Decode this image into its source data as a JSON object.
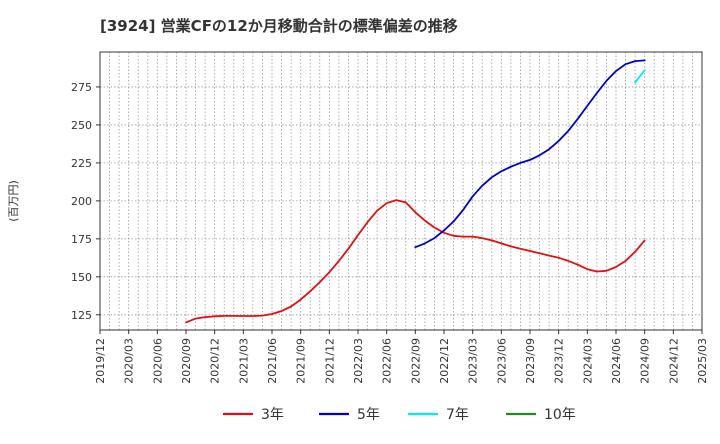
{
  "chart_data": {
    "type": "line",
    "title": "[3924]  営業CFの12か月移動合計の標準偏差の推移",
    "ylabel": "(百万円)",
    "xlabel": "",
    "ylim": [
      115,
      298
    ],
    "yticks": [
      125,
      150,
      175,
      200,
      225,
      250,
      275
    ],
    "xlim": [
      "2019-12",
      "2025-03"
    ],
    "xticks": [
      "2019/12",
      "2020/03",
      "2020/06",
      "2020/09",
      "2020/12",
      "2021/03",
      "2021/06",
      "2021/09",
      "2021/12",
      "2022/03",
      "2022/06",
      "2022/09",
      "2022/12",
      "2023/03",
      "2023/06",
      "2023/09",
      "2023/12",
      "2024/03",
      "2024/06",
      "2024/09",
      "2024/12",
      "2025/03"
    ],
    "grid": true,
    "legend_position": "bottom",
    "series": [
      {
        "name": "3年",
        "color": "#dd1111",
        "x": [
          "2020-09",
          "2020-10",
          "2020-11",
          "2020-12",
          "2021-01",
          "2021-02",
          "2021-03",
          "2021-04",
          "2021-05",
          "2021-06",
          "2021-07",
          "2021-08",
          "2021-09",
          "2021-10",
          "2021-11",
          "2021-12",
          "2022-01",
          "2022-02",
          "2022-03",
          "2022-04",
          "2022-05",
          "2022-06",
          "2022-07",
          "2022-08",
          "2022-09",
          "2022-10",
          "2022-11",
          "2022-12",
          "2023-01",
          "2023-02",
          "2023-03",
          "2023-04",
          "2023-05",
          "2023-06",
          "2023-07",
          "2023-08",
          "2023-09",
          "2023-10",
          "2023-11",
          "2023-12",
          "2024-01",
          "2024-02",
          "2024-03",
          "2024-04",
          "2024-05",
          "2024-06",
          "2024-07",
          "2024-08",
          "2024-09"
        ],
        "values": [
          120,
          122.5,
          123.5,
          124,
          124.3,
          124.3,
          124.2,
          124.2,
          124.5,
          125.5,
          127.5,
          130.5,
          135,
          140.5,
          146.5,
          153,
          160.5,
          168.5,
          177.5,
          186,
          193.5,
          198.5,
          200.5,
          199,
          192.5,
          187,
          182.5,
          179,
          177,
          176.5,
          176.5,
          175.5,
          174,
          172,
          170,
          168.5,
          167,
          165.5,
          164,
          162.5,
          160.5,
          158,
          155,
          153.5,
          154,
          156.5,
          160.5,
          166.5,
          174
        ]
      },
      {
        "name": "5年",
        "color": "#0000cc",
        "x": [
          "2022-09",
          "2022-10",
          "2022-11",
          "2022-12",
          "2023-01",
          "2023-02",
          "2023-03",
          "2023-04",
          "2023-05",
          "2023-06",
          "2023-07",
          "2023-08",
          "2023-09",
          "2023-10",
          "2023-11",
          "2023-12",
          "2024-01",
          "2024-02",
          "2024-03",
          "2024-04",
          "2024-05",
          "2024-06",
          "2024-07",
          "2024-08",
          "2024-09"
        ],
        "values": [
          169.5,
          172,
          175.5,
          180.5,
          186.5,
          194,
          203,
          210,
          215.5,
          219.5,
          222.5,
          225,
          227,
          230,
          234,
          239.5,
          246,
          254,
          262.5,
          271,
          279,
          285.5,
          290,
          292,
          292.5
        ]
      },
      {
        "name": "7年",
        "color": "#00eeee",
        "x": [
          "2024-08",
          "2024-09"
        ],
        "values": [
          278,
          286
        ]
      },
      {
        "name": "10年",
        "color": "#228822",
        "x": [],
        "values": []
      }
    ]
  }
}
